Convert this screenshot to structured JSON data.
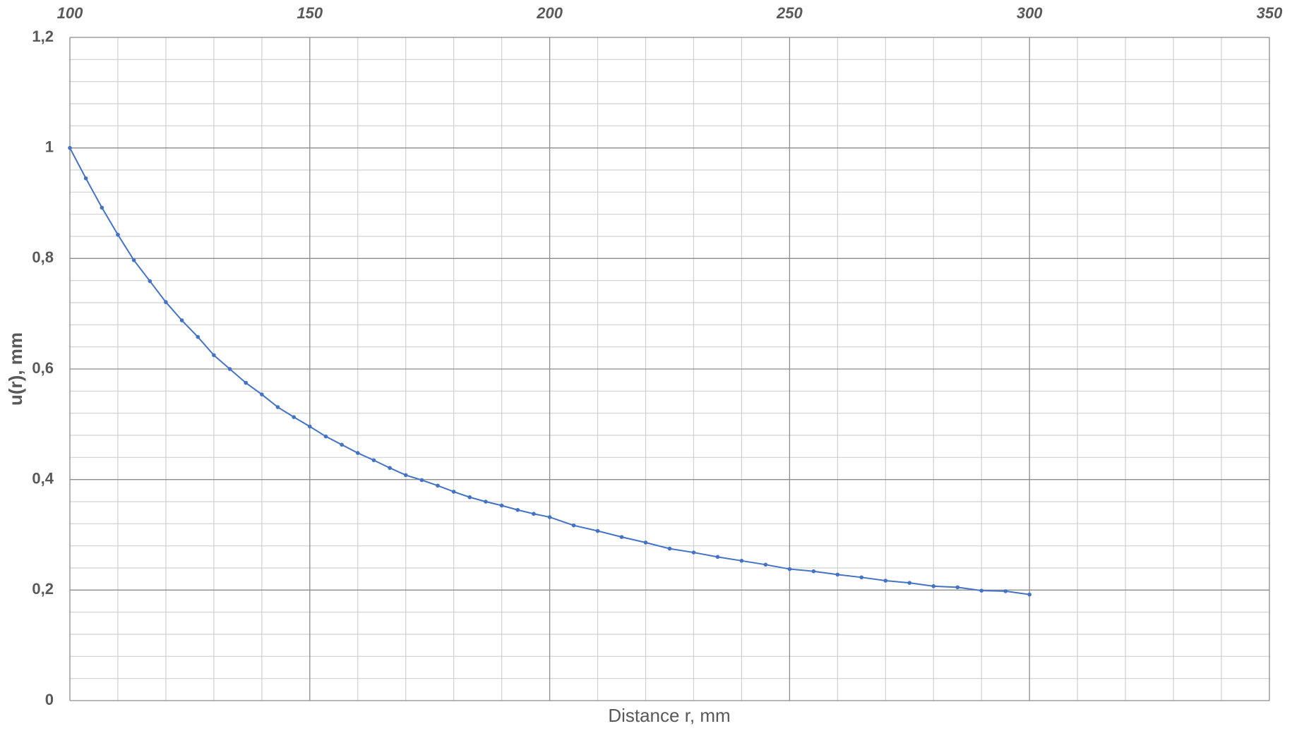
{
  "chart_data": {
    "type": "line",
    "x_label": "Distance r, mm",
    "y_label": "u(r), mm",
    "x": [
      100,
      103.33,
      106.67,
      110,
      113.33,
      116.67,
      120,
      123.33,
      126.67,
      130,
      133.33,
      136.67,
      140,
      143.33,
      146.67,
      150,
      153.33,
      156.67,
      160,
      163.33,
      166.67,
      170,
      173.33,
      176.67,
      180,
      183.33,
      186.67,
      190,
      193.33,
      196.67,
      200,
      205,
      210,
      215,
      220,
      225,
      230,
      235,
      240,
      245,
      250,
      255,
      260,
      265,
      270,
      275,
      280,
      285,
      290,
      295,
      300
    ],
    "series": [
      {
        "color": "#4472c4",
        "values": [
          1.0,
          0.945,
          0.892,
          0.843,
          0.797,
          0.759,
          0.721,
          0.688,
          0.658,
          0.625,
          0.6,
          0.575,
          0.554,
          0.531,
          0.513,
          0.496,
          0.478,
          0.463,
          0.448,
          0.435,
          0.421,
          0.408,
          0.399,
          0.389,
          0.378,
          0.368,
          0.36,
          0.353,
          0.345,
          0.338,
          0.332,
          0.317,
          0.307,
          0.296,
          0.286,
          0.275,
          0.268,
          0.26,
          0.253,
          0.246,
          0.238,
          0.234,
          0.228,
          0.223,
          0.217,
          0.213,
          0.207,
          0.205,
          0.199,
          0.198,
          0.192
        ]
      }
    ],
    "xlim": [
      100,
      350
    ],
    "xticks": [
      100,
      150,
      200,
      250,
      300,
      350
    ],
    "ylim": [
      0,
      1.2
    ],
    "yticks": [
      0,
      {
        "value": 0.2,
        "label": "0,2"
      },
      {
        "value": 0.4,
        "label": "0,4"
      },
      {
        "value": 0.6,
        "label": "0,6"
      },
      {
        "value": 0.8,
        "label": "0,8"
      },
      1,
      {
        "value": 1.2,
        "label": "1,2"
      }
    ],
    "grid": true,
    "minor_grid_divisions": 5,
    "x_axis_position": "top",
    "markers": true
  }
}
